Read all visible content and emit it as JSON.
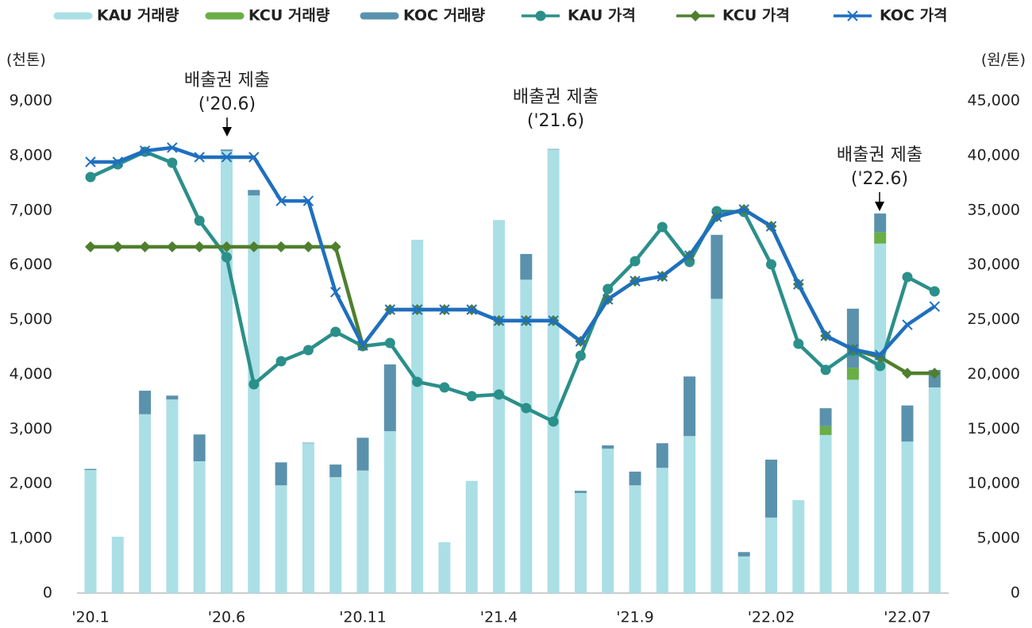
{
  "chart_data": {
    "type": "bar",
    "y_label": "(천톤)",
    "y2_label": "(원/톤)",
    "categories": [
      "'20.1",
      null,
      null,
      null,
      null,
      "'20.6",
      null,
      null,
      null,
      null,
      "'20.11",
      null,
      null,
      null,
      null,
      "'21.4",
      null,
      null,
      null,
      null,
      "'21.9",
      null,
      null,
      null,
      null,
      "'22.02",
      null,
      null,
      null,
      null,
      "'22.07",
      null
    ],
    "ylim": [
      0,
      9000
    ],
    "yticks": [
      0,
      {
        "value": 1000,
        "label": "1,000"
      },
      {
        "value": 2000,
        "label": "2,000"
      },
      {
        "value": 3000,
        "label": "3,000"
      },
      {
        "value": 4000,
        "label": "4,000"
      },
      {
        "value": 5000,
        "label": "5,000"
      },
      {
        "value": 6000,
        "label": "6,000"
      },
      {
        "value": 7000,
        "label": "7,000"
      },
      {
        "value": 8000,
        "label": "8,000"
      },
      {
        "value": 9000,
        "label": "9,000"
      }
    ],
    "y2lim": [
      0,
      45000
    ],
    "y2ticks": [
      0,
      {
        "value": 5000,
        "label": "5,000"
      },
      {
        "value": 10000,
        "label": "10,000"
      },
      {
        "value": 15000,
        "label": "15,000"
      },
      {
        "value": 20000,
        "label": "20,000"
      },
      {
        "value": 25000,
        "label": "25,000"
      },
      {
        "value": 30000,
        "label": "30,000"
      },
      {
        "value": 35000,
        "label": "35,000"
      },
      {
        "value": 40000,
        "label": "40,000"
      },
      {
        "value": 45000,
        "label": "45,000"
      }
    ],
    "stacked": true,
    "series": [
      {
        "name": "KAU 거래량",
        "type": "bar",
        "color": "#abdfe6",
        "values": [
          2250,
          1030,
          3270,
          3540,
          2410,
          8080,
          7270,
          1970,
          2740,
          2120,
          2240,
          2960,
          6460,
          930,
          2050,
          6820,
          5730,
          8110,
          1830,
          2640,
          1970,
          2290,
          2870,
          5380,
          670,
          1380,
          1700,
          2890,
          3900,
          6390,
          2770,
          3760
        ]
      },
      {
        "name": "KCU 거래량",
        "type": "bar",
        "color": "#6aae46",
        "values": [
          0,
          0,
          0,
          0,
          0,
          0,
          0,
          0,
          0,
          0,
          0,
          0,
          0,
          0,
          0,
          0,
          0,
          0,
          0,
          0,
          0,
          0,
          0,
          0,
          0,
          0,
          0,
          160,
          220,
          210,
          0,
          0
        ]
      },
      {
        "name": "KOC 거래량",
        "type": "bar",
        "color": "#5a92ad",
        "values": [
          20,
          0,
          430,
          70,
          490,
          30,
          100,
          420,
          10,
          230,
          600,
          1220,
          0,
          0,
          0,
          0,
          470,
          10,
          40,
          60,
          250,
          450,
          1090,
          1170,
          80,
          1060,
          0,
          330,
          1080,
          340,
          660,
          320
        ]
      },
      {
        "name": "KAU 가격",
        "type": "line",
        "marker": "circle",
        "axis": "y2",
        "color": "#2b8f8a",
        "values": [
          38030,
          39190,
          40350,
          39340,
          34040,
          30700,
          19090,
          21190,
          22210,
          23880,
          22570,
          22860,
          19310,
          18800,
          18000,
          18150,
          16910,
          15680,
          21700,
          27800,
          30340,
          33460,
          30270,
          34910,
          34840,
          30050,
          22790,
          20400,
          22140,
          20760,
          28890,
          27580
        ]
      },
      {
        "name": "KCU 가격",
        "type": "line",
        "marker": "diamond",
        "axis": "y2",
        "color": "#4f7f2e",
        "values": [
          31650,
          31650,
          31650,
          31650,
          31650,
          31650,
          31650,
          31650,
          31650,
          31650,
          22640,
          25910,
          25910,
          25910,
          25910,
          24900,
          24900,
          24900,
          23010,
          26850,
          28520,
          28960,
          30850,
          34400,
          35060,
          33530,
          28230,
          23520,
          22280,
          21550,
          20100,
          20100
        ]
      },
      {
        "name": "KOC 가격",
        "type": "line",
        "marker": "x",
        "axis": "y2",
        "color": "#1f6fbf",
        "values": [
          39410,
          39410,
          40430,
          40720,
          39850,
          39850,
          39850,
          35850,
          35850,
          27510,
          22640,
          25910,
          25910,
          25910,
          25910,
          24900,
          24900,
          24900,
          23010,
          26850,
          28520,
          28960,
          30850,
          34400,
          35060,
          33530,
          28230,
          23520,
          22280,
          21770,
          24530,
          26200
        ]
      }
    ],
    "annotations": [
      {
        "text": "배출권 제출",
        "date": "('20.6)"
      },
      {
        "text": "배출권 제출",
        "date": "('21.6)"
      },
      {
        "text": "배출권 제출",
        "date": "('22.6)"
      }
    ]
  }
}
